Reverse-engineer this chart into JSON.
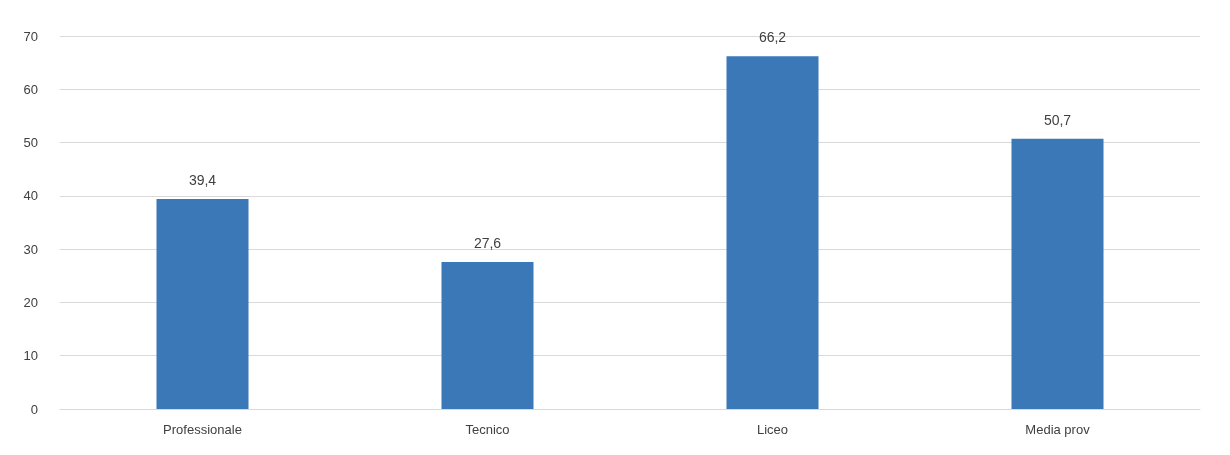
{
  "chart_data": {
    "type": "bar",
    "categories": [
      "Professionale",
      "Tecnico",
      "Liceo",
      "Media prov"
    ],
    "values": [
      39.4,
      27.6,
      66.2,
      50.7
    ],
    "value_labels": [
      "39,4",
      "27,6",
      "66,2",
      "50,7"
    ],
    "color": "#3b78b8",
    "ylim": [
      0,
      70
    ],
    "yticks": [
      0,
      10,
      20,
      30,
      40,
      50,
      60,
      70
    ],
    "grid": "y"
  }
}
